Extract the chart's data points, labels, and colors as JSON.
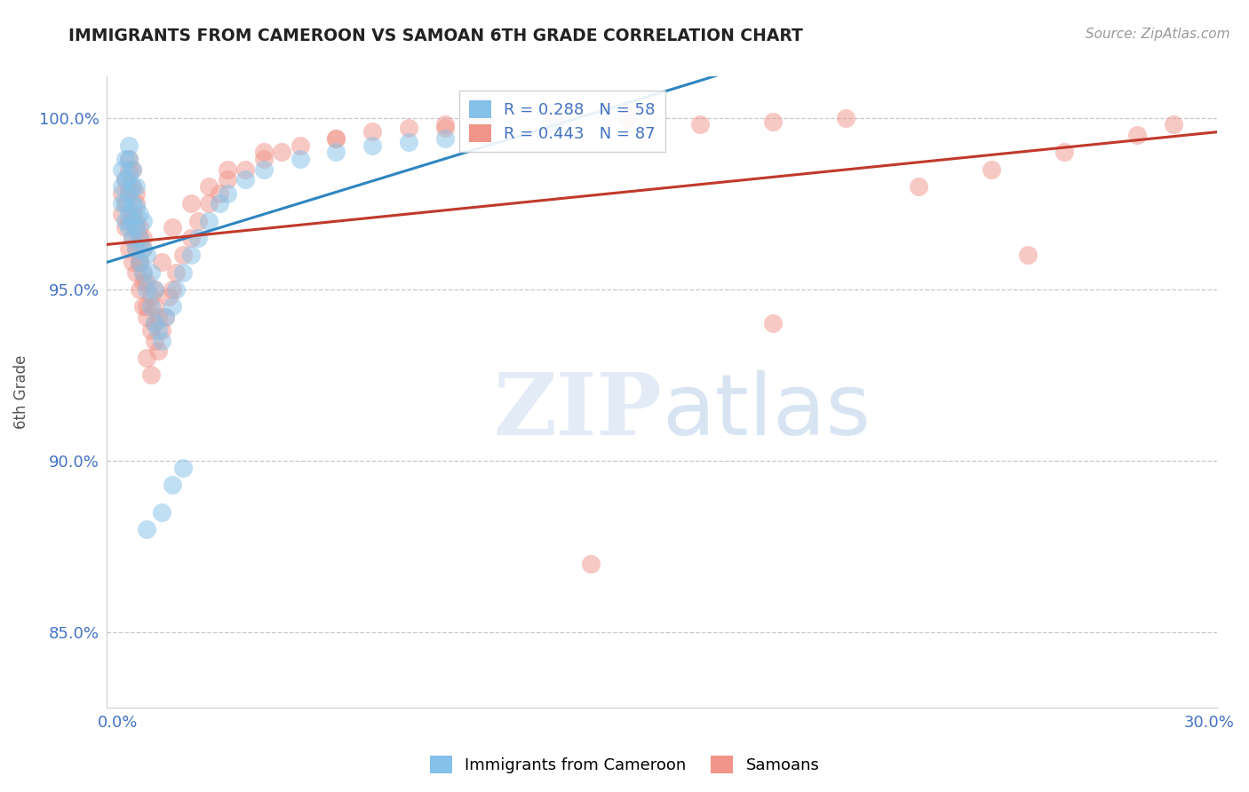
{
  "title": "IMMIGRANTS FROM CAMEROON VS SAMOAN 6TH GRADE CORRELATION CHART",
  "source": "Source: ZipAtlas.com",
  "ylabel": "6th Grade",
  "xlim": [
    -0.003,
    0.302
  ],
  "ylim": [
    0.828,
    1.012
  ],
  "xtick_positions": [
    0.0,
    0.05,
    0.1,
    0.15,
    0.2,
    0.25,
    0.3
  ],
  "xticklabels": [
    "0.0%",
    "",
    "",
    "",
    "",
    "",
    "30.0%"
  ],
  "ytick_positions": [
    0.85,
    0.9,
    0.95,
    1.0
  ],
  "yticklabels": [
    "85.0%",
    "90.0%",
    "95.0%",
    "100.0%"
  ],
  "cameroon_color": "#85c1e9",
  "samoan_color": "#f1948a",
  "cameroon_line_color": "#2e86c1",
  "samoan_line_color": "#c0392b",
  "cameroon_R": 0.288,
  "cameroon_N": 58,
  "samoan_R": 0.443,
  "samoan_N": 87,
  "watermark_zip": "ZIP",
  "watermark_atlas": "atlas",
  "background_color": "#ffffff",
  "grid_color": "#bbbbbb",
  "tick_color": "#4472c4",
  "legend_text_color": "#4472c4",
  "title_color": "#222222",
  "source_color": "#999999",
  "ylabel_color": "#555555",
  "cameroon_x": [
    0.001,
    0.001,
    0.001,
    0.002,
    0.002,
    0.002,
    0.002,
    0.003,
    0.003,
    0.003,
    0.003,
    0.003,
    0.003,
    0.004,
    0.004,
    0.004,
    0.004,
    0.004,
    0.005,
    0.005,
    0.005,
    0.005,
    0.006,
    0.006,
    0.006,
    0.007,
    0.007,
    0.007,
    0.008,
    0.008,
    0.009,
    0.009,
    0.01,
    0.01,
    0.011,
    0.012,
    0.013,
    0.015,
    0.016,
    0.018,
    0.02,
    0.022,
    0.025,
    0.028,
    0.03,
    0.035,
    0.04,
    0.05,
    0.06,
    0.07,
    0.08,
    0.09,
    0.1,
    0.12,
    0.015,
    0.018,
    0.012,
    0.008
  ],
  "cameroon_y": [
    0.975,
    0.98,
    0.985,
    0.97,
    0.975,
    0.982,
    0.988,
    0.968,
    0.972,
    0.978,
    0.983,
    0.988,
    0.992,
    0.965,
    0.97,
    0.975,
    0.98,
    0.985,
    0.962,
    0.968,
    0.974,
    0.98,
    0.958,
    0.965,
    0.972,
    0.955,
    0.962,
    0.97,
    0.95,
    0.96,
    0.945,
    0.955,
    0.94,
    0.95,
    0.938,
    0.935,
    0.942,
    0.945,
    0.95,
    0.955,
    0.96,
    0.965,
    0.97,
    0.975,
    0.978,
    0.982,
    0.985,
    0.988,
    0.99,
    0.992,
    0.993,
    0.994,
    0.995,
    0.997,
    0.893,
    0.898,
    0.885,
    0.88
  ],
  "samoan_x": [
    0.001,
    0.001,
    0.002,
    0.002,
    0.002,
    0.003,
    0.003,
    0.003,
    0.003,
    0.004,
    0.004,
    0.004,
    0.004,
    0.005,
    0.005,
    0.005,
    0.005,
    0.006,
    0.006,
    0.006,
    0.007,
    0.007,
    0.007,
    0.008,
    0.008,
    0.009,
    0.009,
    0.01,
    0.01,
    0.011,
    0.011,
    0.012,
    0.013,
    0.014,
    0.015,
    0.016,
    0.018,
    0.02,
    0.022,
    0.025,
    0.028,
    0.03,
    0.035,
    0.04,
    0.045,
    0.05,
    0.06,
    0.07,
    0.08,
    0.09,
    0.1,
    0.12,
    0.14,
    0.16,
    0.18,
    0.2,
    0.22,
    0.24,
    0.26,
    0.28,
    0.29,
    0.008,
    0.009,
    0.01,
    0.006,
    0.007,
    0.005,
    0.004,
    0.003,
    0.003,
    0.004,
    0.005,
    0.006,
    0.007,
    0.008,
    0.01,
    0.012,
    0.015,
    0.02,
    0.025,
    0.03,
    0.04,
    0.06,
    0.09,
    0.13,
    0.18,
    0.25
  ],
  "samoan_y": [
    0.972,
    0.978,
    0.968,
    0.975,
    0.982,
    0.962,
    0.97,
    0.978,
    0.985,
    0.958,
    0.965,
    0.972,
    0.98,
    0.955,
    0.962,
    0.97,
    0.978,
    0.95,
    0.958,
    0.968,
    0.945,
    0.955,
    0.965,
    0.942,
    0.952,
    0.938,
    0.948,
    0.935,
    0.945,
    0.932,
    0.942,
    0.938,
    0.942,
    0.948,
    0.95,
    0.955,
    0.96,
    0.965,
    0.97,
    0.975,
    0.978,
    0.982,
    0.985,
    0.988,
    0.99,
    0.992,
    0.994,
    0.996,
    0.997,
    0.998,
    0.999,
    1.0,
    1.0,
    0.998,
    0.999,
    1.0,
    0.98,
    0.985,
    0.99,
    0.995,
    0.998,
    0.93,
    0.925,
    0.94,
    0.958,
    0.962,
    0.968,
    0.972,
    0.98,
    0.988,
    0.985,
    0.975,
    0.965,
    0.952,
    0.945,
    0.95,
    0.958,
    0.968,
    0.975,
    0.98,
    0.985,
    0.99,
    0.994,
    0.997,
    0.87,
    0.94,
    0.96
  ]
}
